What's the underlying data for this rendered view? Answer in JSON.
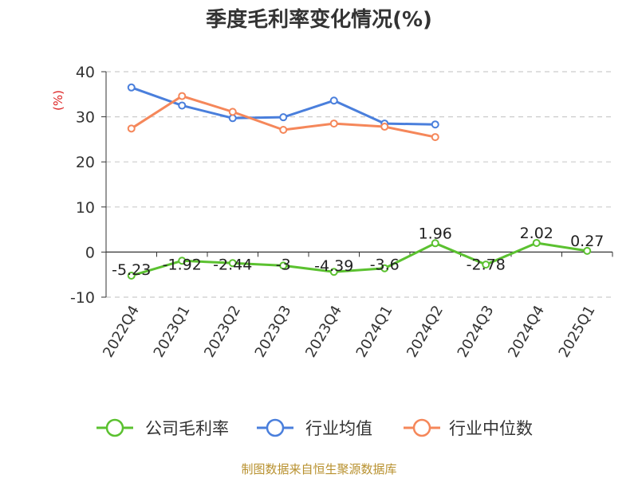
{
  "chart_data": {
    "type": "line",
    "title": "季度毛利率变化情况(%)",
    "ylabel": "(%)",
    "ylim": [
      -10,
      40
    ],
    "yticks": [
      -10,
      0,
      10,
      20,
      30,
      40
    ],
    "grid": true,
    "legend_position": "bottom",
    "categories": [
      "2022Q4",
      "2023Q1",
      "2023Q2",
      "2023Q3",
      "2023Q4",
      "2024Q1",
      "2024Q2",
      "2024Q3",
      "2024Q4",
      "2025Q1"
    ],
    "series": [
      {
        "name": "公司毛利率",
        "color": "#5bc130",
        "values": [
          -5.23,
          -1.92,
          -2.44,
          -3,
          -4.39,
          -3.6,
          1.96,
          -2.78,
          2.02,
          0.27
        ],
        "labels": [
          "-5.23",
          "-1.92",
          "-2.44",
          "-3",
          "-4.39",
          "-3.6",
          "1.96",
          "-2.78",
          "2.02",
          "0.27"
        ]
      },
      {
        "name": "行业均值",
        "color": "#4a7fdc",
        "values": [
          36.5,
          32.5,
          29.7,
          29.9,
          33.6,
          28.5,
          28.3,
          null,
          null,
          null
        ]
      },
      {
        "name": "行业中位数",
        "color": "#f5875a",
        "values": [
          27.4,
          34.6,
          31.1,
          27.1,
          28.5,
          27.8,
          25.5,
          null,
          null,
          null
        ]
      }
    ]
  },
  "source": "制图数据来自恒生聚源数据库"
}
